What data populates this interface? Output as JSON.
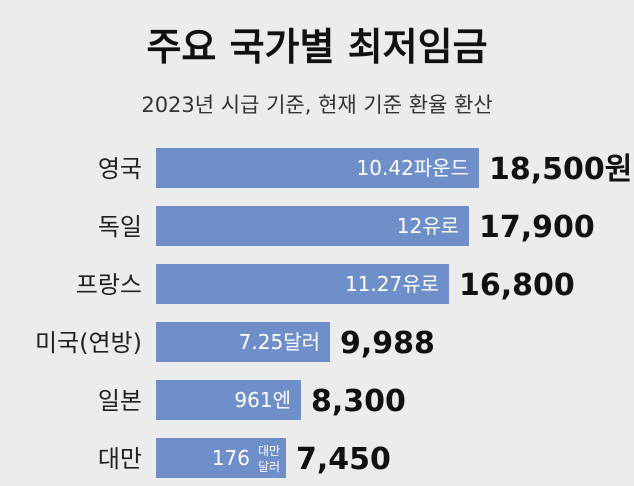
{
  "chart_data": {
    "type": "bar",
    "title": "주요 국가별 최저임금",
    "subtitle": "2023년 시급 기준, 현재 기준 환율 환산",
    "categories": [
      "영국",
      "독일",
      "프랑스",
      "미국(연방)",
      "일본",
      "대만"
    ],
    "values": [
      18500,
      17900,
      16800,
      9988,
      8300,
      7450
    ],
    "value_labels": [
      "18,500원",
      "17,900",
      "16,800",
      "9,988",
      "8,300",
      "7,450"
    ],
    "local_labels": [
      "10.42파운드",
      "12유로",
      "11.27유로",
      "7.25달러",
      "961엔",
      "176"
    ],
    "local_unit_stacked": [
      "",
      "",
      "",
      "",
      "",
      "대만 달러"
    ],
    "xlim": [
      0,
      18500
    ],
    "grid": false,
    "legend": "none",
    "colors": {
      "bar": "#6f8fcb",
      "background": "#ececec",
      "text": "#111111"
    }
  }
}
